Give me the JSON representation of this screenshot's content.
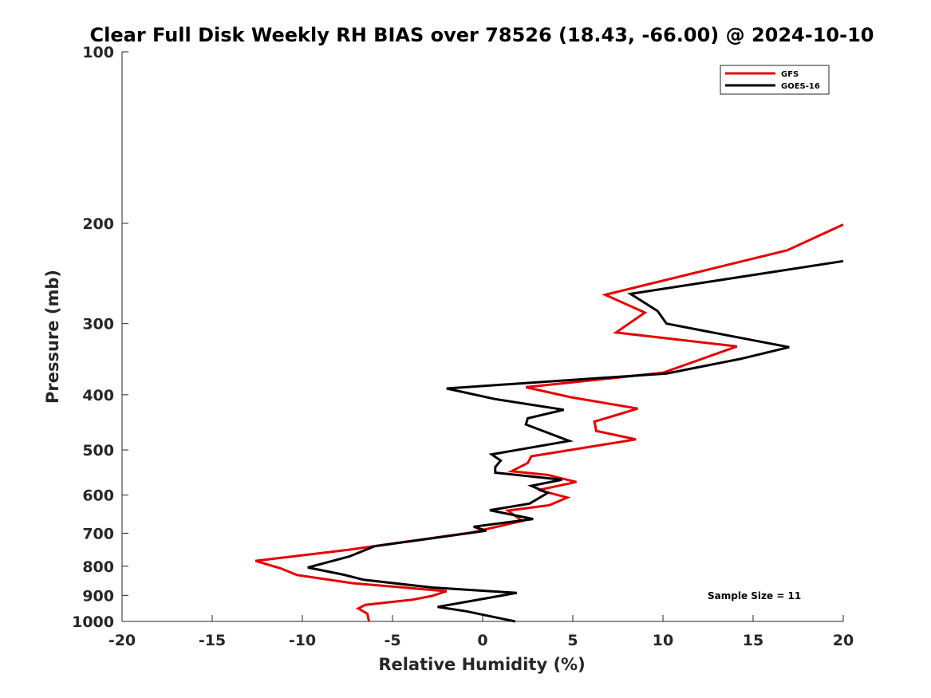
{
  "chart_data": {
    "type": "line",
    "title": "Clear Full Disk Weekly RH BIAS over 78526 (18.43, -66.00) @ 2024-10-10",
    "xlabel": "Relative Humidity (%)",
    "ylabel": "Pressure (mb)",
    "xlim": [
      -20,
      20
    ],
    "ylim": [
      100,
      1000
    ],
    "y_scale": "log",
    "y_reversed": true,
    "x_ticks": [
      -20,
      -15,
      -10,
      -5,
      0,
      5,
      10,
      15,
      20
    ],
    "y_ticks": [
      100,
      200,
      300,
      400,
      500,
      600,
      700,
      800,
      900,
      1000
    ],
    "grid": false,
    "legend_position": "top-right",
    "series": [
      {
        "name": "GFS",
        "color": "#e50000",
        "points": [
          [
            20.0,
            201
          ],
          [
            16.9,
            223
          ],
          [
            6.8,
            267
          ],
          [
            9.0,
            287
          ],
          [
            7.4,
            311
          ],
          [
            14.1,
            329
          ],
          [
            10.0,
            366
          ],
          [
            2.4,
            388
          ],
          [
            4.9,
            404
          ],
          [
            8.6,
            423
          ],
          [
            6.2,
            446
          ],
          [
            6.3,
            463
          ],
          [
            8.5,
            479
          ],
          [
            2.7,
            513
          ],
          [
            2.5,
            527
          ],
          [
            1.6,
            545
          ],
          [
            3.6,
            553
          ],
          [
            5.2,
            569
          ],
          [
            3.1,
            588
          ],
          [
            4.7,
            606
          ],
          [
            3.7,
            625
          ],
          [
            1.4,
            639
          ],
          [
            2.2,
            666
          ],
          [
            -0.6,
            698
          ],
          [
            -7.5,
            749
          ],
          [
            -12.6,
            783
          ],
          [
            -11.2,
            807
          ],
          [
            -10.3,
            829
          ],
          [
            -7.2,
            857
          ],
          [
            -2.0,
            885
          ],
          [
            -2.8,
            902
          ],
          [
            -3.9,
            916
          ],
          [
            -6.5,
            935
          ],
          [
            -6.9,
            949
          ],
          [
            -6.4,
            969
          ],
          [
            -6.3,
            1000
          ]
        ]
      },
      {
        "name": "GOES-16",
        "color": "#000000",
        "points": [
          [
            20.0,
            233
          ],
          [
            8.2,
            266
          ],
          [
            9.7,
            285
          ],
          [
            10.2,
            300
          ],
          [
            17.0,
            330
          ],
          [
            14.3,
            346
          ],
          [
            10.2,
            367
          ],
          [
            -2.0,
            390
          ],
          [
            0.7,
            407
          ],
          [
            4.5,
            425
          ],
          [
            2.5,
            440
          ],
          [
            2.4,
            451
          ],
          [
            4.8,
            482
          ],
          [
            0.5,
            509
          ],
          [
            1.0,
            522
          ],
          [
            0.7,
            536
          ],
          [
            0.7,
            548
          ],
          [
            4.4,
            564
          ],
          [
            2.7,
            578
          ],
          [
            3.6,
            595
          ],
          [
            2.6,
            621
          ],
          [
            0.4,
            638
          ],
          [
            2.8,
            661
          ],
          [
            -0.5,
            682
          ],
          [
            0.2,
            693
          ],
          [
            -6.0,
            738
          ],
          [
            -7.4,
            769
          ],
          [
            -9.7,
            804
          ],
          [
            -7.7,
            828
          ],
          [
            -6.6,
            845
          ],
          [
            -2.8,
            872
          ],
          [
            1.9,
            891
          ],
          [
            -2.5,
            943
          ],
          [
            -0.9,
            960
          ],
          [
            1.8,
            1000
          ]
        ]
      }
    ],
    "annotation": "Sample Size = 11"
  }
}
